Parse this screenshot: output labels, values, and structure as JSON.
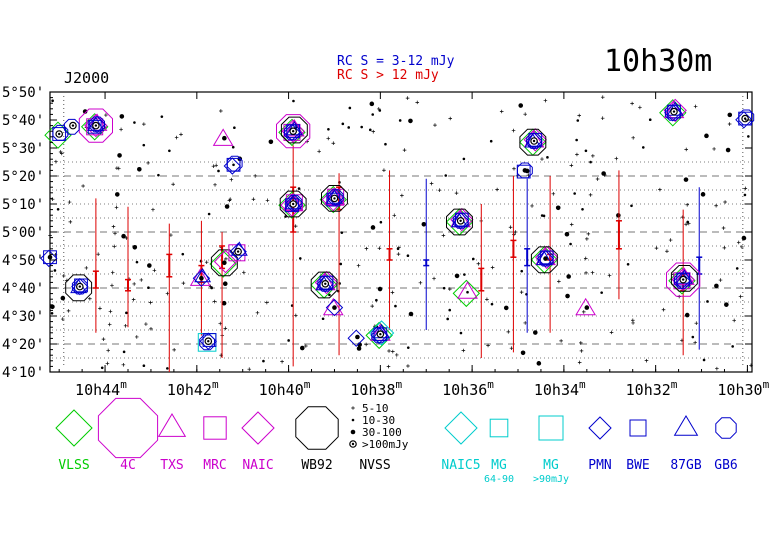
{
  "title": "10h30m",
  "epoch": "J2000",
  "rc_legend": [
    {
      "text": "RC S = 3-12 mJy",
      "color": "#0000cc"
    },
    {
      "text": "RC S > 12 mJy",
      "color": "#dd0000"
    }
  ],
  "chart_data": {
    "type": "scatter",
    "xaxis": {
      "ticks": [
        {
          "h": "10",
          "m": "44"
        },
        {
          "h": "10",
          "m": "42"
        },
        {
          "h": "10",
          "m": "40"
        },
        {
          "h": "10",
          "m": "38"
        },
        {
          "h": "10",
          "m": "36"
        },
        {
          "h": "10",
          "m": "34"
        },
        {
          "h": "10",
          "m": "32"
        },
        {
          "h": "10",
          "m": "30"
        }
      ],
      "xlim_minutes": [
        45.2,
        29.9
      ]
    },
    "yaxis": {
      "ticks": [
        "4°10'",
        "4°20'",
        "4°30'",
        "4°40'",
        "4°50'",
        "5°00'",
        "5°10'",
        "5°20'",
        "5°30'",
        "5°40'",
        "5°50'"
      ],
      "ylim_arcmin": [
        250,
        350
      ]
    },
    "sources": [
      {
        "ra": 44.2,
        "dec": 338.0,
        "cats": [
          "VLSS",
          "4C",
          "TXS",
          "MRC",
          "NAIC",
          "PMN",
          "BWE",
          "87GB",
          "GB6"
        ],
        "flux": ">100"
      },
      {
        "ra": 44.55,
        "dec": 280.5,
        "cats": [
          "WB92",
          "PMN",
          "BWE",
          "87GB",
          "GB6"
        ],
        "flux": ">100"
      },
      {
        "ra": 45.0,
        "dec": 335.0,
        "cats": [
          "VLSS",
          "BWE",
          "GB6"
        ],
        "flux": ">100"
      },
      {
        "ra": 44.7,
        "dec": 338.0,
        "cats": [
          "GB6"
        ],
        "flux": ">100"
      },
      {
        "ra": 41.9,
        "dec": 283.5,
        "cats": [
          "TXS",
          "PMN",
          "87GB"
        ],
        "flux": "30-100"
      },
      {
        "ra": 41.75,
        "dec": 261.0,
        "cats": [
          "MG",
          "PMN",
          "BWE",
          "GB6"
        ],
        "flux": ">100"
      },
      {
        "ra": 41.4,
        "dec": 289.0,
        "cats": [
          "VLSS",
          "WB92",
          "NAIC"
        ],
        "flux": "30-100"
      },
      {
        "ra": 41.1,
        "dec": 293.0,
        "cats": [
          "MRC",
          "PMN",
          "87GB"
        ],
        "flux": ">100"
      },
      {
        "ra": 41.4,
        "dec": 333.5,
        "cats": [
          "TXS"
        ],
        "flux": "30-100"
      },
      {
        "ra": 41.2,
        "dec": 324.0,
        "cats": [
          "PMN",
          "BWE",
          "GB6"
        ],
        "flux": "10-30"
      },
      {
        "ra": 39.9,
        "dec": 336.0,
        "cats": [
          "VLSS",
          "4C",
          "TXS",
          "MRC",
          "NAIC",
          "WB92",
          "PMN",
          "BWE",
          "87GB",
          "GB6"
        ],
        "flux": ">100"
      },
      {
        "ra": 39.9,
        "dec": 310.0,
        "cats": [
          "VLSS",
          "TXS",
          "MRC",
          "NAIC",
          "WB92",
          "PMN",
          "BWE",
          "87GB",
          "GB6"
        ],
        "flux": ">100"
      },
      {
        "ra": 39.0,
        "dec": 312.0,
        "cats": [
          "VLSS",
          "TXS",
          "MRC",
          "NAIC",
          "WB92",
          "PMN",
          "BWE",
          "87GB",
          "GB6"
        ],
        "flux": ">100"
      },
      {
        "ra": 39.2,
        "dec": 281.5,
        "cats": [
          "VLSS",
          "TXS",
          "NAIC",
          "WB92",
          "PMN",
          "BWE",
          "87GB",
          "GB6"
        ],
        "flux": ">100"
      },
      {
        "ra": 38.0,
        "dec": 263.5,
        "cats": [
          "VLSS",
          "TXS",
          "NAIC5",
          "PMN",
          "BWE",
          "87GB",
          "GB6"
        ],
        "flux": ">100"
      },
      {
        "ra": 39.0,
        "dec": 273.0,
        "cats": [
          "TXS",
          "PMN"
        ],
        "flux": "30-100"
      },
      {
        "ra": 38.5,
        "dec": 262.5,
        "cats": [
          "PMN"
        ],
        "flux": "30-100"
      },
      {
        "ra": 36.25,
        "dec": 304.0,
        "cats": [
          "VLSS",
          "TXS",
          "NAIC",
          "WB92",
          "PMN",
          "BWE",
          "87GB",
          "GB6"
        ],
        "flux": ">100"
      },
      {
        "ra": 36.1,
        "dec": 278.5,
        "cats": [
          "VLSS",
          "TXS"
        ],
        "flux": "10-30"
      },
      {
        "ra": 34.65,
        "dec": 332.5,
        "cats": [
          "VLSS",
          "TXS",
          "NAIC",
          "WB92",
          "PMN",
          "BWE",
          "87GB",
          "GB6"
        ],
        "flux": ">100"
      },
      {
        "ra": 34.85,
        "dec": 322.0,
        "cats": [
          "BWE",
          "GB6"
        ],
        "flux": "30-100"
      },
      {
        "ra": 34.4,
        "dec": 290.5,
        "cats": [
          "VLSS",
          "TXS",
          "NAIC",
          "WB92",
          "PMN",
          "BWE",
          "87GB",
          "GB6"
        ],
        "flux": "30-100"
      },
      {
        "ra": 33.5,
        "dec": 273.0,
        "cats": [
          "TXS"
        ],
        "flux": "30-100"
      },
      {
        "ra": 31.6,
        "dec": 343.0,
        "cats": [
          "VLSS",
          "TXS",
          "NAIC",
          "PMN",
          "BWE",
          "87GB",
          "GB6"
        ],
        "flux": ">100"
      },
      {
        "ra": 31.4,
        "dec": 283.0,
        "cats": [
          "VLSS",
          "4C",
          "TXS",
          "MRC",
          "NAIC",
          "WB92",
          "PMN",
          "BWE",
          "87GB",
          "GB6"
        ],
        "flux": ">100"
      },
      {
        "ra": 30.05,
        "dec": 340.5,
        "cats": [
          "PMN",
          "BWE",
          "GB6"
        ],
        "flux": ">100"
      },
      {
        "ra": 45.2,
        "dec": 291.0,
        "cats": [
          "PMN",
          "BWE"
        ],
        "flux": "30-100"
      }
    ],
    "rc_sources": [
      {
        "ra": 44.2,
        "dec_min": 264,
        "dec_max": 312,
        "dec_val": 283,
        "err": 3,
        "band": ">12"
      },
      {
        "ra": 43.5,
        "dec_min": 266,
        "dec_max": 309,
        "dec_val": 281,
        "err": 2,
        "band": ">12"
      },
      {
        "ra": 42.6,
        "dec_min": 250,
        "dec_max": 303,
        "dec_val": 288,
        "err": 4,
        "band": ">12"
      },
      {
        "ra": 41.9,
        "dec_min": 263,
        "dec_max": 304,
        "dec_val": 285,
        "err": 3,
        "band": ">12"
      },
      {
        "ra": 41.45,
        "dec_min": 255,
        "dec_max": 300,
        "dec_val": 291,
        "err": 4,
        "band": ">12"
      },
      {
        "ra": 39.9,
        "dec_min": 252,
        "dec_max": 331,
        "dec_val": 308,
        "err": 8,
        "band": ">12"
      },
      {
        "ra": 38.9,
        "dec_min": 256,
        "dec_max": 321,
        "dec_val": 312,
        "err": 4,
        "band": ">12"
      },
      {
        "ra": 37.8,
        "dec_min": 265,
        "dec_max": 322,
        "dec_val": 292,
        "err": 2,
        "band": ">12"
      },
      {
        "ra": 37.0,
        "dec_min": 265,
        "dec_max": 319,
        "dec_val": 289,
        "err": 1,
        "band": "3-12"
      },
      {
        "ra": 35.8,
        "dec_min": 255,
        "dec_max": 310,
        "dec_val": 283,
        "err": 4,
        "band": ">12"
      },
      {
        "ra": 35.1,
        "dec_min": 257,
        "dec_max": 320,
        "dec_val": 294,
        "err": 3,
        "band": ">12"
      },
      {
        "ra": 34.8,
        "dec_min": 264,
        "dec_max": 319,
        "dec_val": 291,
        "err": 3,
        "band": "3-12"
      },
      {
        "ra": 34.3,
        "dec_min": 264,
        "dec_max": 320,
        "dec_val": 291,
        "err": 1,
        "band": ">12"
      },
      {
        "ra": 32.8,
        "dec_min": 276,
        "dec_max": 322,
        "dec_val": 299,
        "err": 5,
        "band": ">12"
      },
      {
        "ra": 31.4,
        "dec_min": 256,
        "dec_max": 308,
        "dec_val": 282,
        "err": 3,
        "band": ">12"
      },
      {
        "ra": 31.05,
        "dec_min": 258,
        "dec_max": 316,
        "dec_val": 288,
        "err": 3,
        "band": "3-12"
      }
    ]
  },
  "legend": {
    "flux_labels": [
      "5-10",
      "10-30",
      "30-100",
      ">100mJy"
    ],
    "catalogs": [
      {
        "name": "VLSS",
        "color": "#00cc00",
        "shape": "diamond"
      },
      {
        "name": "4C",
        "color": "#cc00cc",
        "shape": "octagon"
      },
      {
        "name": "TXS",
        "color": "#cc00cc",
        "shape": "triangle"
      },
      {
        "name": "MRC",
        "color": "#cc00cc",
        "shape": "square"
      },
      {
        "name": "NAIC",
        "color": "#cc00cc",
        "shape": "diamond"
      },
      {
        "name": "WB92",
        "color": "#000000",
        "shape": "octagon"
      },
      {
        "name": "NVSS",
        "color": "#000000",
        "shape": "dots"
      },
      {
        "name": "NAIC5",
        "color": "#00cccc",
        "shape": "diamond"
      },
      {
        "name": "MG",
        "color": "#00cccc",
        "shape": "square",
        "note": "64-90"
      },
      {
        "name": "MG",
        "color": "#00cccc",
        "shape": "square",
        "note": ">90mJy"
      },
      {
        "name": "PMN",
        "color": "#0000cc",
        "shape": "diamond"
      },
      {
        "name": "BWE",
        "color": "#0000cc",
        "shape": "square"
      },
      {
        "name": "87GB",
        "color": "#0000cc",
        "shape": "triangle"
      },
      {
        "name": "GB6",
        "color": "#0000cc",
        "shape": "octagon"
      }
    ]
  }
}
